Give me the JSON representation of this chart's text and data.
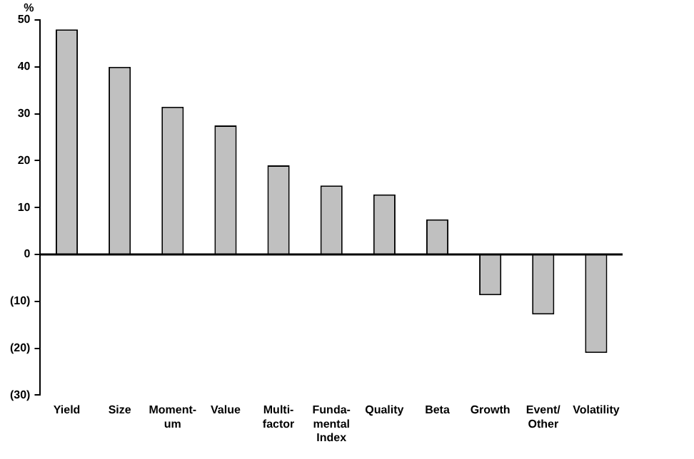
{
  "chart_data": {
    "type": "bar",
    "ylabel": "%",
    "categories": [
      "Yield",
      "Size",
      "Moment-\num",
      "Value",
      "Multi-\nfactor",
      "Funda-\nmental\nIndex",
      "Quality",
      "Beta",
      "Growth",
      "Event/\nOther",
      "Volatility"
    ],
    "values": [
      48,
      40,
      31.5,
      27.5,
      19,
      14.7,
      12.8,
      7.5,
      -8.7,
      -12.8,
      -21
    ],
    "color": "#c0c0c0",
    "ylim": [
      -30,
      50
    ],
    "yticks": [
      {
        "value": -30,
        "label": "(30)"
      },
      {
        "value": -20,
        "label": "(20)"
      },
      {
        "value": -10,
        "label": "(10)"
      },
      0,
      10,
      20,
      30,
      40,
      50
    ],
    "ref_lines": [
      {
        "axis": "y",
        "value": 0,
        "color": "#000000"
      }
    ],
    "grid": false,
    "legend": false
  }
}
